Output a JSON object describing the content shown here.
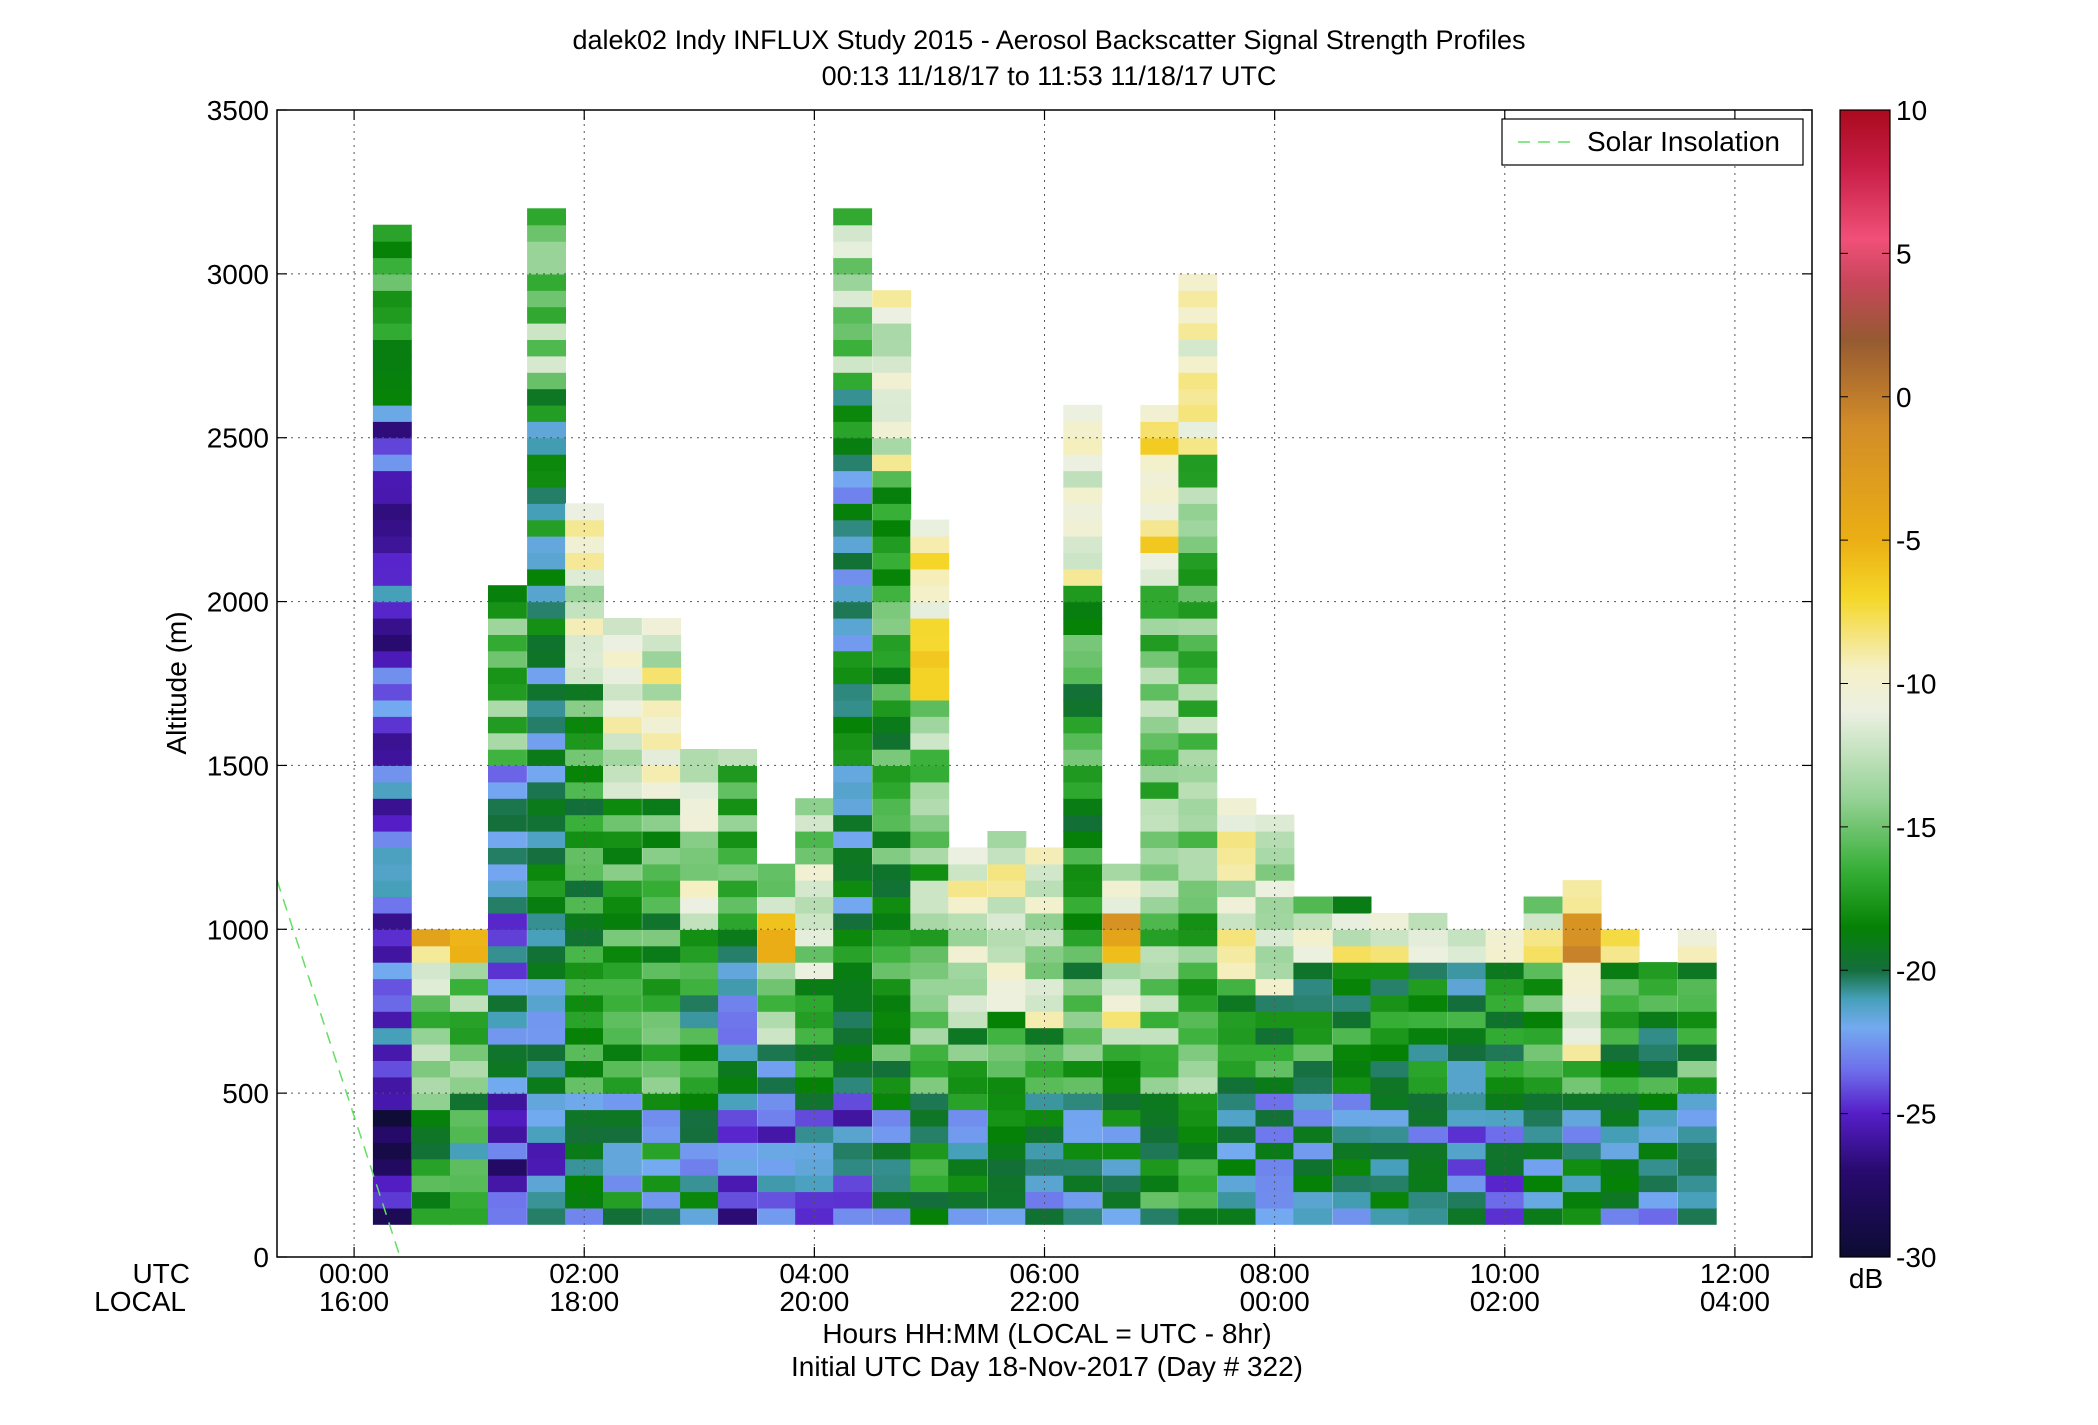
{
  "title": "dalek02 Indy INFLUX Study 2015 - Aerosol Backscatter Signal Strength Profiles",
  "subtitle": "00:13 11/18/17 to 11:53 11/18/17  UTC",
  "xlabel": "Hours HH:MM  (LOCAL = UTC - 8hr)",
  "xlabel2": "Initial UTC Day 18-Nov-2017 (Day # 322)",
  "ylabel": "Altitude (m)",
  "row_label_utc": "UTC",
  "row_label_local": "LOCAL",
  "colorbar_unit": "dB",
  "legend_label": "Solar Insolation",
  "chart_data": {
    "type": "heatmap",
    "title": "dalek02 Indy INFLUX Study 2015 - Aerosol Backscatter Signal Strength Profiles",
    "subtitle": "00:13 11/18/17 to 11:53 11/18/17  UTC",
    "xlabel": "Hours HH:MM  (LOCAL = UTC - 8hr)",
    "ylabel": "Altitude (m)",
    "xlim_hours": [
      -0.67,
      12.67
    ],
    "ylim": [
      0,
      3500
    ],
    "x_ticks_utc": [
      "00:00",
      "02:00",
      "04:00",
      "06:00",
      "08:00",
      "10:00",
      "12:00"
    ],
    "x_ticks_local": [
      "16:00",
      "18:00",
      "20:00",
      "22:00",
      "00:00",
      "02:00",
      "04:00"
    ],
    "y_ticks": [
      "0",
      "500",
      "1000",
      "1500",
      "2000",
      "2500",
      "3000",
      "3500"
    ],
    "colorbar": {
      "label": "dB",
      "range": [
        -30,
        10
      ],
      "ticks": [
        "10",
        "5",
        "0",
        "-5",
        "-10",
        "-15",
        "-20",
        "-25",
        "-30"
      ]
    },
    "legend": {
      "position": "top-right",
      "entries": [
        "Solar Insolation"
      ]
    },
    "grid": true,
    "bin_width_hours": 0.333,
    "bin_height_m": 50,
    "profiles": [
      {
        "t": 0.33,
        "top": 3150,
        "mean_db": -24
      },
      {
        "t": 0.67,
        "top": 1000,
        "mean_db": -14
      },
      {
        "t": 1.0,
        "top": 1000,
        "mean_db": -15
      },
      {
        "t": 1.33,
        "top": 2050,
        "mean_db": -22
      },
      {
        "t": 1.67,
        "top": 3200,
        "mean_db": -20
      },
      {
        "t": 2.0,
        "top": 2300,
        "mean_db": -17
      },
      {
        "t": 2.33,
        "top": 1950,
        "mean_db": -17
      },
      {
        "t": 2.67,
        "top": 1950,
        "mean_db": -17
      },
      {
        "t": 3.0,
        "top": 1550,
        "mean_db": -18
      },
      {
        "t": 3.33,
        "top": 1550,
        "mean_db": -21
      },
      {
        "t": 3.67,
        "top": 1200,
        "mean_db": -20
      },
      {
        "t": 4.0,
        "top": 1400,
        "mean_db": -19
      },
      {
        "t": 4.33,
        "top": 3200,
        "mean_db": -20
      },
      {
        "t": 4.67,
        "top": 2950,
        "mean_db": -17
      },
      {
        "t": 5.0,
        "top": 2250,
        "mean_db": -15
      },
      {
        "t": 5.33,
        "top": 1250,
        "mean_db": -17
      },
      {
        "t": 5.67,
        "top": 1300,
        "mean_db": -17
      },
      {
        "t": 6.0,
        "top": 1250,
        "mean_db": -18
      },
      {
        "t": 6.33,
        "top": 2600,
        "mean_db": -17
      },
      {
        "t": 6.67,
        "top": 1200,
        "mean_db": -17
      },
      {
        "t": 7.0,
        "top": 2600,
        "mean_db": -15
      },
      {
        "t": 7.33,
        "top": 3000,
        "mean_db": -15
      },
      {
        "t": 7.67,
        "top": 1400,
        "mean_db": -17
      },
      {
        "t": 8.0,
        "top": 1350,
        "mean_db": -18
      },
      {
        "t": 8.33,
        "top": 1100,
        "mean_db": -18
      },
      {
        "t": 8.67,
        "top": 1100,
        "mean_db": -18
      },
      {
        "t": 9.0,
        "top": 1050,
        "mean_db": -18
      },
      {
        "t": 9.33,
        "top": 1050,
        "mean_db": -19
      },
      {
        "t": 9.67,
        "top": 1000,
        "mean_db": -19
      },
      {
        "t": 10.0,
        "top": 1000,
        "mean_db": -19
      },
      {
        "t": 10.33,
        "top": 1100,
        "mean_db": -17
      },
      {
        "t": 10.67,
        "top": 1150,
        "mean_db": -17
      },
      {
        "t": 11.0,
        "top": 1000,
        "mean_db": -18
      },
      {
        "t": 11.33,
        "top": 900,
        "mean_db": -18
      },
      {
        "t": 11.67,
        "top": 1000,
        "mean_db": -17
      }
    ],
    "solar_insolation": {
      "name": "Solar Insolation",
      "style": "dashed light green",
      "points": [
        [
          -0.67,
          1150
        ],
        [
          0.4,
          0
        ]
      ]
    }
  }
}
